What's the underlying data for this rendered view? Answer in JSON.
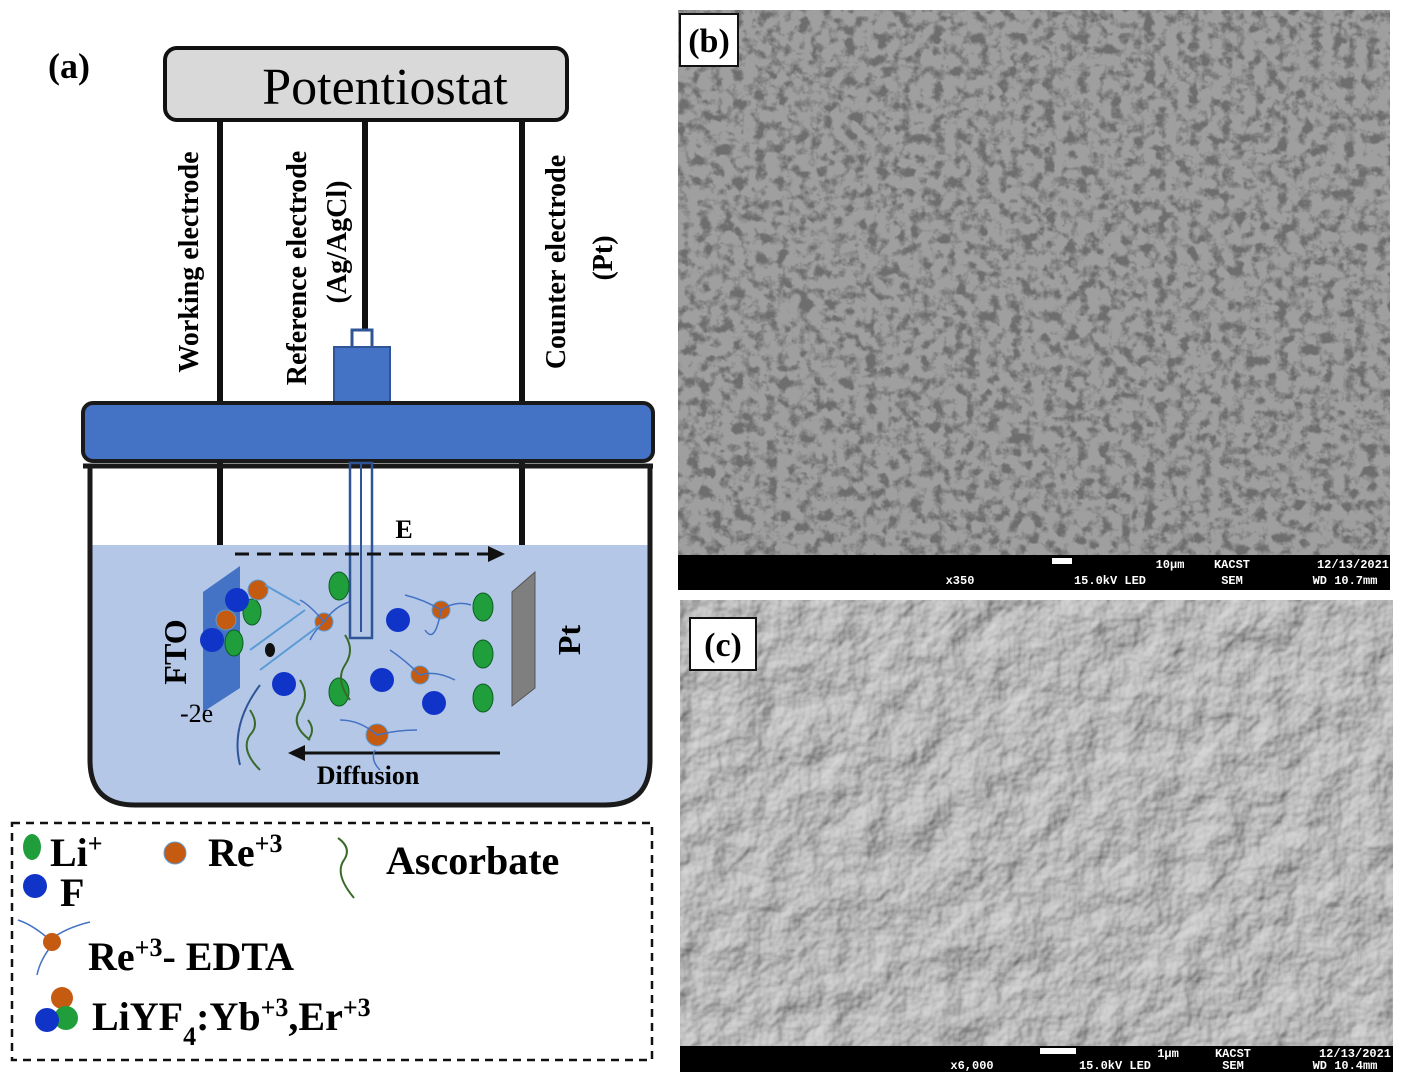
{
  "panel_a": {
    "label": "(a)",
    "potentiostat": "Potentiostat",
    "electrodes": {
      "working": "Working electrode",
      "reference": "Reference electrode",
      "reference_note": "(Ag/AgCl)",
      "counter": "Counter electrode",
      "counter_note": "(Pt)"
    },
    "cell": {
      "field": "E",
      "diffusion": "Diffusion",
      "fto": "FTO",
      "pt": "Pt",
      "electrons": "-2e"
    },
    "legend": {
      "li": [
        {
          "t": "Li"
        },
        {
          "sup": "+"
        }
      ],
      "re": [
        {
          "t": "Re"
        },
        {
          "sup": "+3"
        }
      ],
      "ascorbate": [
        {
          "t": "Ascorbate"
        }
      ],
      "f": [
        {
          "t": "F"
        }
      ],
      "re_edta": [
        {
          "t": "Re"
        },
        {
          "sup": "+3"
        },
        {
          "t": "- EDTA"
        }
      ],
      "particle": [
        {
          "t": "LiYF"
        },
        {
          "sub": "4"
        },
        {
          "t": ":Yb"
        },
        {
          "sup": "+3"
        },
        {
          "t": ",Er"
        },
        {
          "sup": "+3"
        }
      ]
    }
  },
  "panel_b": {
    "label": "(b)",
    "info": {
      "scale": "10μm",
      "institute": "KACST",
      "date": "12/13/2021",
      "magnification": "x350",
      "voltage": "15.0kV LED",
      "detector": "SEM",
      "working_distance": "WD 10.7mm"
    }
  },
  "panel_c": {
    "label": "(c)",
    "info": {
      "scale": "1μm",
      "institute": "KACST",
      "date": "12/13/2021",
      "magnification": "x6,000",
      "voltage": "15.0kV LED",
      "detector": "SEM",
      "working_distance": "WD 10.4mm"
    }
  }
}
